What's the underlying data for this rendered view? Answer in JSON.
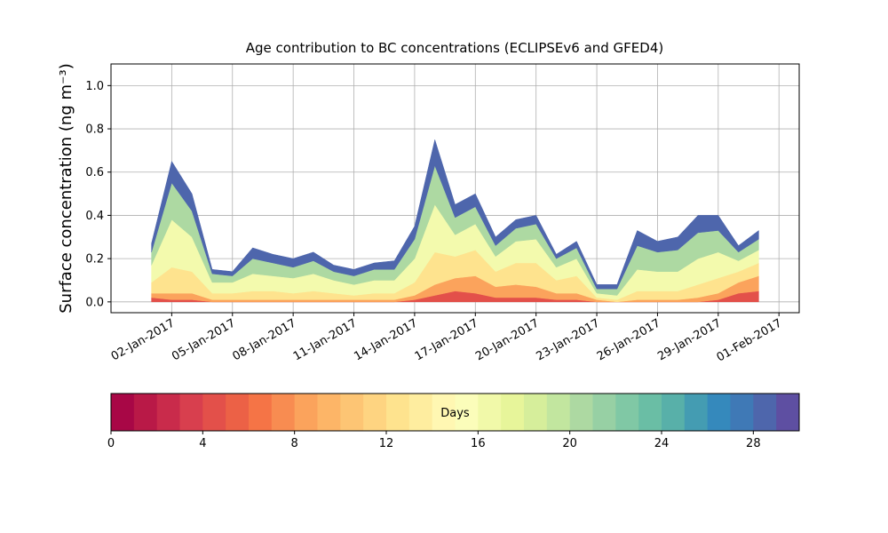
{
  "chart_data": {
    "type": "stacked-area",
    "title": "Age contribution to BC concentrations (ECLIPSEv6 and GFED4)",
    "y_label": "Surface concentration (ng m⁻³)",
    "x": [
      "2017-01-01",
      "2017-01-02",
      "2017-01-03",
      "2017-01-04",
      "2017-01-05",
      "2017-01-06",
      "2017-01-07",
      "2017-01-08",
      "2017-01-09",
      "2017-01-10",
      "2017-01-11",
      "2017-01-12",
      "2017-01-13",
      "2017-01-14",
      "2017-01-15",
      "2017-01-16",
      "2017-01-17",
      "2017-01-18",
      "2017-01-19",
      "2017-01-20",
      "2017-01-21",
      "2017-01-22",
      "2017-01-23",
      "2017-01-24",
      "2017-01-25",
      "2017-01-26",
      "2017-01-27",
      "2017-01-28",
      "2017-01-29",
      "2017-01-30",
      "2017-01-31"
    ],
    "series": [
      {
        "color": "#e3504a",
        "values": [
          0.02,
          0.01,
          0.01,
          0,
          0,
          0,
          0,
          0,
          0,
          0,
          0,
          0,
          0,
          0.01,
          0.03,
          0.05,
          0.04,
          0.02,
          0.02,
          0.02,
          0.01,
          0.01,
          0,
          0,
          0,
          0,
          0,
          0,
          0.01,
          0.04,
          0.05
        ]
      },
      {
        "color": "#fba35c",
        "values": [
          0.02,
          0.03,
          0.03,
          0.01,
          0.01,
          0.01,
          0.01,
          0.01,
          0.01,
          0.01,
          0.01,
          0.01,
          0.01,
          0.02,
          0.05,
          0.06,
          0.08,
          0.05,
          0.06,
          0.05,
          0.03,
          0.03,
          0.01,
          0,
          0.01,
          0.01,
          0.01,
          0.02,
          0.03,
          0.05,
          0.07
        ]
      },
      {
        "color": "#fee38e",
        "values": [
          0.05,
          0.12,
          0.1,
          0.03,
          0.03,
          0.04,
          0.04,
          0.03,
          0.04,
          0.03,
          0.02,
          0.03,
          0.03,
          0.06,
          0.15,
          0.1,
          0.12,
          0.07,
          0.1,
          0.11,
          0.06,
          0.08,
          0.01,
          0.01,
          0.04,
          0.04,
          0.04,
          0.06,
          0.07,
          0.05,
          0.06
        ]
      },
      {
        "color": "#f3faad",
        "values": [
          0.08,
          0.22,
          0.16,
          0.05,
          0.05,
          0.08,
          0.07,
          0.07,
          0.08,
          0.06,
          0.05,
          0.06,
          0.06,
          0.11,
          0.22,
          0.1,
          0.12,
          0.07,
          0.1,
          0.11,
          0.06,
          0.08,
          0.02,
          0.02,
          0.1,
          0.09,
          0.09,
          0.12,
          0.12,
          0.05,
          0.06
        ]
      },
      {
        "color": "#add9a2",
        "values": [
          0.06,
          0.17,
          0.12,
          0.04,
          0.03,
          0.07,
          0.06,
          0.05,
          0.06,
          0.04,
          0.04,
          0.05,
          0.05,
          0.09,
          0.18,
          0.08,
          0.08,
          0.05,
          0.06,
          0.07,
          0.04,
          0.05,
          0.02,
          0.03,
          0.11,
          0.09,
          0.1,
          0.12,
          0.1,
          0.04,
          0.05
        ]
      },
      {
        "color": "#4e66ac",
        "values": [
          0.04,
          0.1,
          0.08,
          0.02,
          0.02,
          0.05,
          0.04,
          0.04,
          0.04,
          0.03,
          0.03,
          0.03,
          0.04,
          0.06,
          0.12,
          0.06,
          0.06,
          0.04,
          0.04,
          0.04,
          0.02,
          0.03,
          0.02,
          0.02,
          0.07,
          0.05,
          0.06,
          0.08,
          0.07,
          0.03,
          0.04
        ]
      }
    ],
    "xlim": [
      "2016-12-30",
      "2017-02-02"
    ],
    "xticks": [
      {
        "value": "2017-01-02",
        "label": "02-Jan-2017"
      },
      {
        "value": "2017-01-05",
        "label": "05-Jan-2017"
      },
      {
        "value": "2017-01-08",
        "label": "08-Jan-2017"
      },
      {
        "value": "2017-01-11",
        "label": "11-Jan-2017"
      },
      {
        "value": "2017-01-14",
        "label": "14-Jan-2017"
      },
      {
        "value": "2017-01-17",
        "label": "17-Jan-2017"
      },
      {
        "value": "2017-01-20",
        "label": "20-Jan-2017"
      },
      {
        "value": "2017-01-23",
        "label": "23-Jan-2017"
      },
      {
        "value": "2017-01-26",
        "label": "26-Jan-2017"
      },
      {
        "value": "2017-01-29",
        "label": "29-Jan-2017"
      },
      {
        "value": "2017-02-01",
        "label": "01-Feb-2017"
      }
    ],
    "ylim": [
      -0.05,
      1.1
    ],
    "yticks": [
      {
        "value": 0,
        "label": "0.0"
      },
      0.2,
      0.4,
      0.6,
      0.8,
      {
        "value": 1,
        "label": "1.0"
      }
    ],
    "grid": true,
    "colorbar": {
      "label": "Days",
      "lim": [
        0,
        30
      ],
      "ticks": [
        0,
        4,
        8,
        12,
        16,
        20,
        24,
        28
      ],
      "colors": [
        "#a80746",
        "#b91947",
        "#c92b4b",
        "#d83f4e",
        "#e3504a",
        "#ec6146",
        "#f57446",
        "#f88c51",
        "#fba35c",
        "#fdb567",
        "#fdc574",
        "#fed481",
        "#fee38e",
        "#feed9f",
        "#fff7b2",
        "#fbfdba",
        "#f1f9a9",
        "#e7f59a",
        "#d6ee9b",
        "#c2e69f",
        "#add9a2",
        "#97d0a4",
        "#80c8a5",
        "#6abea5",
        "#58b0a9",
        "#449cb2",
        "#3589bc",
        "#3f79b6",
        "#4e66ac",
        "#5e4fa2"
      ]
    }
  }
}
